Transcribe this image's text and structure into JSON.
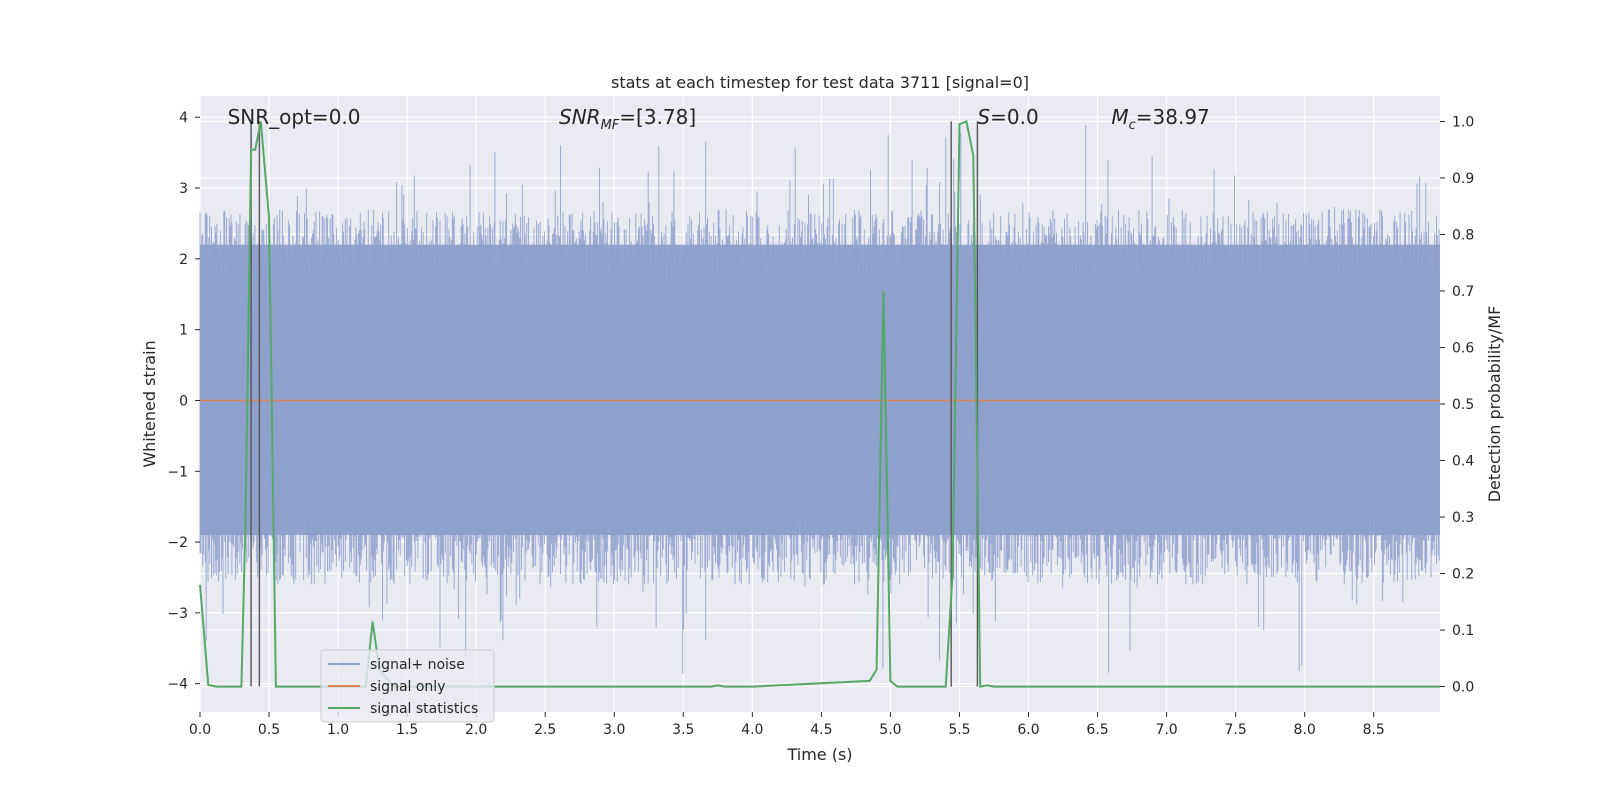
{
  "chart_data": {
    "type": "line",
    "title": "stats at each timestep for test data 3711 [signal=0]",
    "xlabel": "Time (s)",
    "ylabel_left": "Whitened strain",
    "ylabel_right": "Detection probability/MF",
    "xlim": [
      0,
      8.98
    ],
    "ylim_left": [
      -4.4,
      4.3
    ],
    "ylim_right": [
      -0.045,
      1.045
    ],
    "x_ticks": [
      "0.0",
      "0.5",
      "1.0",
      "1.5",
      "2.0",
      "2.5",
      "3.0",
      "3.5",
      "4.0",
      "4.5",
      "5.0",
      "5.5",
      "6.0",
      "6.5",
      "7.0",
      "7.5",
      "8.0",
      "8.5"
    ],
    "y_ticks_left": [
      "−4",
      "−3",
      "−2",
      "−1",
      "0",
      "1",
      "2",
      "3",
      "4"
    ],
    "y_ticks_right": [
      "0.0",
      "0.1",
      "0.2",
      "0.3",
      "0.4",
      "0.5",
      "0.6",
      "0.7",
      "0.8",
      "0.9",
      "1.0"
    ],
    "grid": true,
    "legend_position": "lower-left",
    "annotations": [
      {
        "name": "snr-opt",
        "text": "SNR_opt=0.0",
        "x": 0.2
      },
      {
        "name": "snr-mf",
        "text": "SNR",
        "sub": "MF",
        "suffix": "=[3.78]",
        "x": 2.6
      },
      {
        "name": "s-stat",
        "text": "S",
        "suffix": "=0.0",
        "x": 5.63
      },
      {
        "name": "chirp-mass",
        "text": "M",
        "sub": "c",
        "suffix": "=38.97",
        "x": 6.6
      }
    ],
    "vertical_lines_x": [
      0.37,
      0.43,
      5.44,
      5.63
    ],
    "series": [
      {
        "name": "signal+ noise",
        "axis": "left",
        "color": "#8da0cb",
        "description_values": "noise band approx -2.7 to 3.0, peaks to about +/-4",
        "band_outer": [
          -4.0,
          4.0
        ],
        "band_inner": [
          -1.9,
          2.2
        ]
      },
      {
        "name": "signal only",
        "axis": "left",
        "color": "#dd8452",
        "x": [
          0,
          8.98
        ],
        "y": [
          0,
          0
        ]
      },
      {
        "name": "signal statistics",
        "axis": "right",
        "color": "#55a868",
        "x": [
          0.0,
          0.06,
          0.12,
          0.3,
          0.33,
          0.37,
          0.4,
          0.44,
          0.5,
          0.55,
          0.6,
          0.7,
          1.2,
          1.25,
          1.3,
          1.4,
          3.7,
          3.75,
          3.8,
          4.0,
          4.85,
          4.9,
          4.95,
          5.0,
          5.05,
          5.1,
          5.4,
          5.45,
          5.5,
          5.55,
          5.6,
          5.65,
          5.7,
          5.75,
          5.8,
          6.0,
          8.98
        ],
        "y": [
          0.18,
          0.003,
          0.0,
          0.0,
          0.3,
          0.95,
          0.95,
          1.0,
          0.83,
          0.0,
          0.0,
          0.0,
          0.0,
          0.115,
          0.03,
          0.0,
          0.0,
          0.002,
          0.0,
          0.0,
          0.01,
          0.03,
          0.7,
          0.01,
          0.0,
          0.0,
          0.0,
          0.2,
          0.995,
          1.0,
          0.94,
          0.0,
          0.002,
          0.0,
          0.0,
          0.0,
          0.0
        ]
      }
    ]
  }
}
